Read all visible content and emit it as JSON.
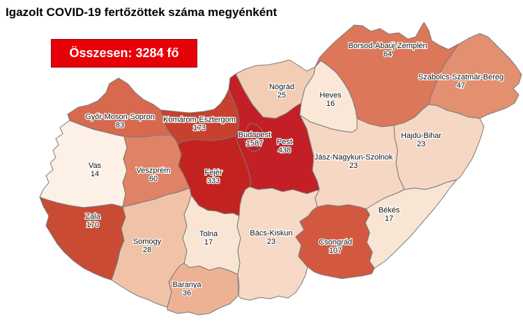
{
  "title": "Igazolt COVID-19 fertőzöttek száma megyénként",
  "total_box": {
    "label": "Összesen: 3284 fő",
    "background": "#e80009",
    "text_color": "#ffffff"
  },
  "map": {
    "country": "Hungary",
    "border_color": "#7a7a7a",
    "background": "#ffffff",
    "label_halo_color": "#ffffff",
    "regions": [
      {
        "id": "gyor_moson_sopron",
        "name": "Győr-Moson-Sopron",
        "value": 83,
        "color": "#d7694f"
      },
      {
        "id": "vas",
        "name": "Vas",
        "value": 14,
        "color": "#fdf0e6"
      },
      {
        "id": "zala",
        "name": "Zala",
        "value": 170,
        "color": "#c94b34"
      },
      {
        "id": "veszprem",
        "name": "Veszprém",
        "value": 60,
        "color": "#df8265"
      },
      {
        "id": "komarom_esztergom",
        "name": "Komárom-Esztergom",
        "value": 173,
        "color": "#c8402e"
      },
      {
        "id": "fejer",
        "name": "Fejér",
        "value": 333,
        "color": "#c32320"
      },
      {
        "id": "somogy",
        "name": "Somogy",
        "value": 28,
        "color": "#f0c3a9"
      },
      {
        "id": "tolna",
        "name": "Tolna",
        "value": 17,
        "color": "#f9e5d4"
      },
      {
        "id": "baranya",
        "name": "Baranya",
        "value": 36,
        "color": "#edb294"
      },
      {
        "id": "bacs_kiskun",
        "name": "Bács-Kiskun",
        "value": 23,
        "color": "#f6d9c6"
      },
      {
        "id": "pest",
        "name": "Pest",
        "value": 438,
        "color": "#c22026"
      },
      {
        "id": "budapest",
        "name": "Budapest",
        "value": 1587,
        "color": "#c01e24"
      },
      {
        "id": "nograd",
        "name": "Nógrád",
        "value": 25,
        "color": "#f2ccb3"
      },
      {
        "id": "heves",
        "name": "Heves",
        "value": 16,
        "color": "#fae7d8"
      },
      {
        "id": "borsod",
        "name": "Borsod-Abaúj-Zemplén",
        "value": 64,
        "color": "#dc775a"
      },
      {
        "id": "szabolcs",
        "name": "Szabolcs-Szatmár-Bereg",
        "value": 47,
        "color": "#e39070"
      },
      {
        "id": "hajdu_bihar",
        "name": "Hajdú-Bihar",
        "value": 23,
        "color": "#f5d7c3"
      },
      {
        "id": "jasz",
        "name": "Jász-Nagykun-Szolnok",
        "value": 23,
        "color": "#f5d7c3"
      },
      {
        "id": "bekes",
        "name": "Békés",
        "value": 17,
        "color": "#f9e5d4"
      },
      {
        "id": "csongrad",
        "name": "Csongrád",
        "value": 107,
        "color": "#d25940"
      }
    ]
  }
}
